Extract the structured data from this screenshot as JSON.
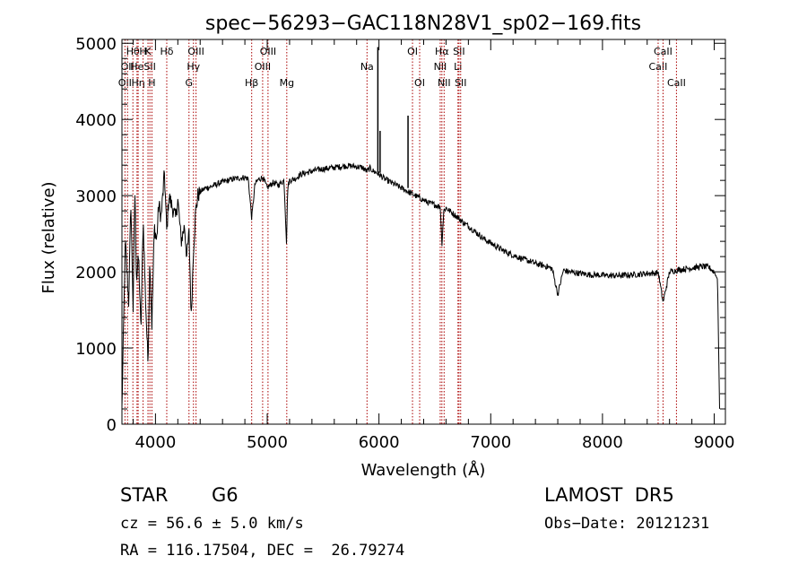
{
  "chart_data": {
    "type": "line",
    "title": "spec−56293−GAC118N28V1_sp02−169.fits",
    "xlabel": "Wavelength (Å)",
    "ylabel": "Flux (relative)",
    "xlim": [
      3700,
      9100
    ],
    "ylim": [
      0,
      5050
    ],
    "xticks": [
      4000,
      5000,
      6000,
      7000,
      8000,
      9000
    ],
    "yticks": [
      0,
      1000,
      2000,
      3000,
      4000,
      5000
    ],
    "grid": false,
    "legend": "none",
    "line_color": "#000000",
    "marker_color": "#aa0000",
    "series": [
      {
        "x": [
          3700,
          3730,
          3760,
          3780,
          3800,
          3815,
          3830,
          3850,
          3870,
          3890,
          3910,
          3933,
          3950,
          3968,
          3990,
          4010,
          4030,
          4050,
          4080,
          4101,
          4120,
          4150,
          4180,
          4200,
          4230,
          4260,
          4280,
          4300,
          4320,
          4340,
          4360,
          4380,
          4400,
          4450,
          4500,
          4550,
          4600,
          4650,
          4700,
          4750,
          4800,
          4830,
          4861,
          4890,
          4920,
          4960,
          5000,
          5050,
          5100,
          5150,
          5172,
          5183,
          5200,
          5250,
          5300,
          5350,
          5400,
          5450,
          5500,
          5550,
          5600,
          5650,
          5700,
          5750,
          5800,
          5850,
          5890,
          5920,
          5950,
          5980,
          6000,
          6050,
          6100,
          6150,
          6200,
          6250,
          6300,
          6350,
          6400,
          6450,
          6500,
          6550,
          6563,
          6580,
          6600,
          6650,
          6700,
          6750,
          6800,
          6850,
          6900,
          6950,
          7000,
          7050,
          7100,
          7150,
          7200,
          7250,
          7300,
          7350,
          7400,
          7450,
          7500,
          7550,
          7600,
          7650,
          7700,
          7750,
          7800,
          7850,
          7900,
          7950,
          8000,
          8050,
          8100,
          8150,
          8200,
          8250,
          8300,
          8350,
          8400,
          8450,
          8500,
          8542,
          8600,
          8662,
          8700,
          8750,
          8800,
          8850,
          8900,
          8950,
          9000,
          9030,
          9050
        ],
        "y": [
          200,
          2400,
          1600,
          2900,
          1500,
          3100,
          1900,
          2200,
          1200,
          2700,
          1700,
          800,
          2200,
          1300,
          2600,
          2400,
          2900,
          2700,
          3300,
          2500,
          3000,
          2850,
          2700,
          2950,
          2400,
          2600,
          2200,
          2500,
          1400,
          2300,
          2800,
          3000,
          3050,
          3100,
          3120,
          3150,
          3180,
          3200,
          3220,
          3230,
          3240,
          3220,
          2700,
          3150,
          3210,
          3240,
          3100,
          3170,
          3140,
          3200,
          2400,
          3100,
          3200,
          3220,
          3280,
          3300,
          3320,
          3340,
          3350,
          3360,
          3370,
          3380,
          3390,
          3390,
          3380,
          3370,
          3320,
          3360,
          3320,
          3300,
          3280,
          3220,
          3180,
          3140,
          3100,
          3060,
          3020,
          2980,
          2940,
          2900,
          2880,
          2850,
          2350,
          2800,
          2840,
          2780,
          2720,
          2650,
          2600,
          2540,
          2480,
          2420,
          2380,
          2330,
          2290,
          2250,
          2220,
          2190,
          2160,
          2140,
          2110,
          2090,
          2070,
          2040,
          1700,
          2020,
          2000,
          1990,
          1980,
          1970,
          1960,
          1960,
          1955,
          1950,
          1950,
          1950,
          1955,
          1960,
          1965,
          1970,
          1980,
          1980,
          1990,
          1600,
          2000,
          2020,
          2030,
          2040,
          2050,
          2060,
          2070,
          2060,
          2000,
          1900,
          0
        ]
      }
    ],
    "spikes": [
      {
        "x": 5990,
        "from": 3300,
        "to": 4950
      },
      {
        "x": 6010,
        "from": 3300,
        "to": 3850
      },
      {
        "x": 6260,
        "from": 3100,
        "to": 4050
      }
    ],
    "line_markers": [
      {
        "x": 3727,
        "row": 2,
        "label": "OII"
      },
      {
        "x": 3750,
        "row": 1,
        "label": "OII"
      },
      {
        "x": 3798,
        "row": 0,
        "label": "Hθ"
      },
      {
        "x": 3835,
        "row": 1,
        "label": "He"
      },
      {
        "x": 3845,
        "row": 2,
        "label": "Hη"
      },
      {
        "x": 3889,
        "row": 0,
        "label": "H"
      },
      {
        "x": 3933,
        "row": 0,
        "label": "K"
      },
      {
        "x": 3950,
        "row": 1,
        "label": "SII"
      },
      {
        "x": 3968,
        "row": 2,
        "label": "H"
      },
      {
        "x": 4101,
        "row": 0,
        "label": "Hδ"
      },
      {
        "x": 4300,
        "row": 2,
        "label": "G"
      },
      {
        "x": 4340,
        "row": 1,
        "label": "Hγ"
      },
      {
        "x": 4363,
        "row": 0,
        "label": "OIII"
      },
      {
        "x": 4861,
        "row": 2,
        "label": "Hβ"
      },
      {
        "x": 4959,
        "row": 1,
        "label": "OIII"
      },
      {
        "x": 5007,
        "row": 0,
        "label": "OIII"
      },
      {
        "x": 5175,
        "row": 2,
        "label": "Mg"
      },
      {
        "x": 5893,
        "row": 1,
        "label": "Na"
      },
      {
        "x": 6300,
        "row": 0,
        "label": "OI"
      },
      {
        "x": 6364,
        "row": 2,
        "label": "OI"
      },
      {
        "x": 6548,
        "row": 1,
        "label": "NII"
      },
      {
        "x": 6563,
        "row": 0,
        "label": "Hα"
      },
      {
        "x": 6583,
        "row": 2,
        "label": "NII"
      },
      {
        "x": 6707,
        "row": 1,
        "label": "Li"
      },
      {
        "x": 6716,
        "row": 0,
        "label": "SII"
      },
      {
        "x": 6731,
        "row": 2,
        "label": "SII"
      },
      {
        "x": 8498,
        "row": 1,
        "label": "CaII"
      },
      {
        "x": 8542,
        "row": 0,
        "label": "CaII"
      },
      {
        "x": 8662,
        "row": 2,
        "label": "CaII"
      }
    ]
  },
  "info": {
    "object_class": "STAR",
    "subclass": "G6",
    "survey": "LAMOST  DR5",
    "redshift": "cz = 56.6 ± 5.0 km/s",
    "obs_date": "Obs−Date: 20121231",
    "coords": "RA = 116.17504, DEC =  26.79274"
  }
}
